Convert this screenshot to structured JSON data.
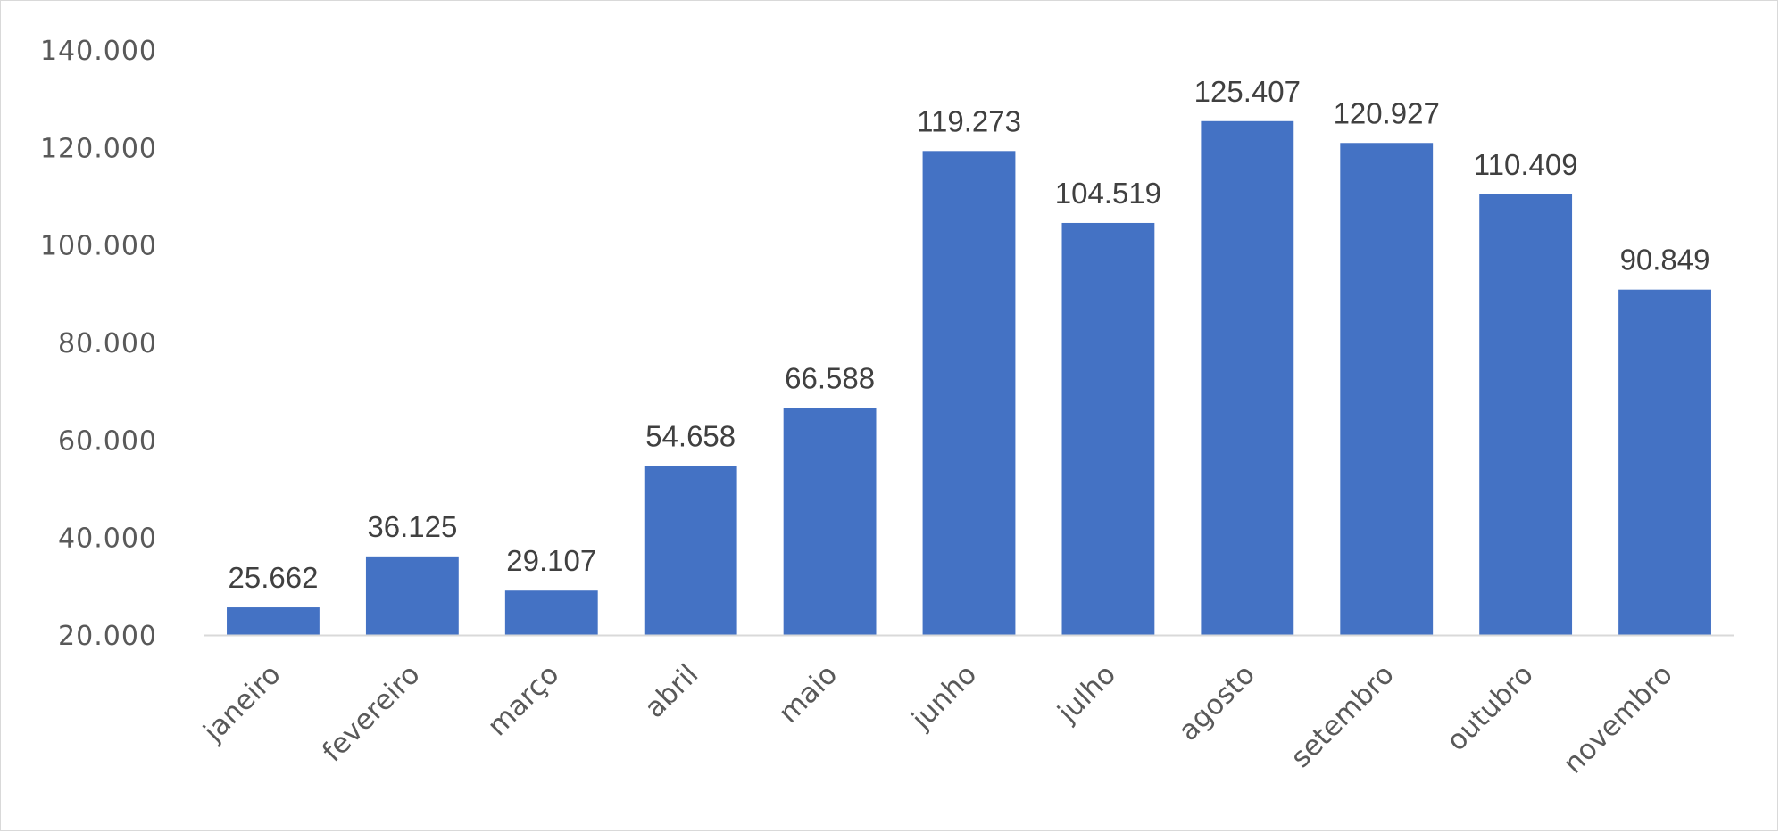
{
  "chart_data": {
    "type": "bar",
    "title": "",
    "xlabel": "",
    "ylabel": "",
    "categories": [
      "janeiro",
      "fevereiro",
      "março",
      "abril",
      "maio",
      "junho",
      "julho",
      "agosto",
      "setembro",
      "outubro",
      "novembro"
    ],
    "values": [
      25662,
      36125,
      29107,
      54658,
      66588,
      119273,
      104519,
      125407,
      120927,
      110409,
      90849
    ],
    "value_labels": [
      "25.662",
      "36.125",
      "29.107",
      "54.658",
      "66.588",
      "119.273",
      "104.519",
      "125.407",
      "120.927",
      "110.409",
      "90.849"
    ],
    "ylim": [
      20000,
      140000
    ],
    "yticks": [
      20000,
      40000,
      60000,
      80000,
      100000,
      120000,
      140000
    ],
    "ytick_labels": [
      "20.000",
      "40.000",
      "60.000",
      "80.000",
      "100.000",
      "120.000",
      "140.000"
    ],
    "grid": false,
    "legend": "none",
    "bar_color": "#4472c4",
    "axis_color": "#d9d9d9"
  }
}
